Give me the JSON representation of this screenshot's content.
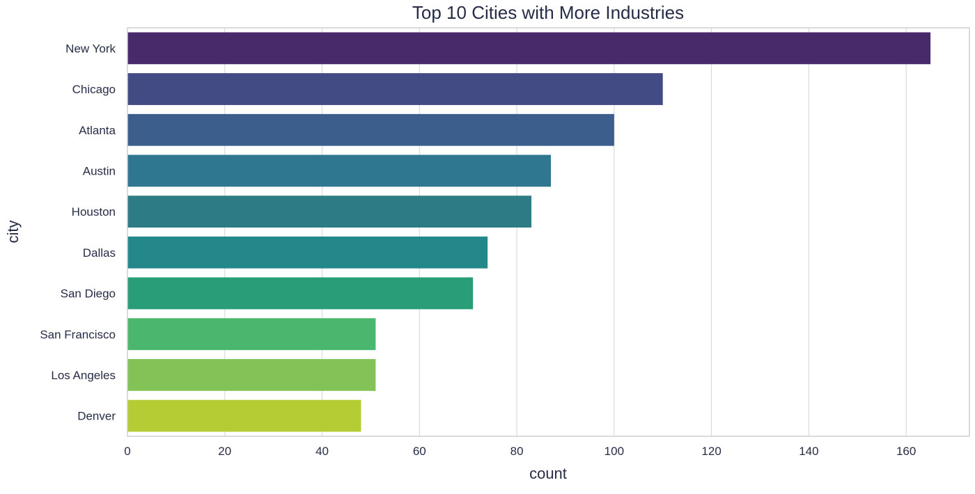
{
  "chart_data": {
    "type": "bar",
    "orientation": "horizontal",
    "title": "Top 10 Cities with More Industries",
    "xlabel": "count",
    "ylabel": "city",
    "categories": [
      "New York",
      "Chicago",
      "Atlanta",
      "Austin",
      "Houston",
      "Dallas",
      "San Diego",
      "San Francisco",
      "Los Angeles",
      "Denver"
    ],
    "values": [
      165,
      110,
      100,
      87,
      83,
      74,
      71,
      51,
      51,
      48
    ],
    "colors": [
      "#482a6b",
      "#434b85",
      "#3b5e8d",
      "#2f7790",
      "#2d7b84",
      "#24888a",
      "#289d78",
      "#4bb76e",
      "#83c257",
      "#b5cc34"
    ],
    "xlim": [
      0,
      173
    ],
    "xticks": [
      0,
      20,
      40,
      60,
      80,
      100,
      120,
      140,
      160
    ],
    "grid": true,
    "legend": "none"
  }
}
